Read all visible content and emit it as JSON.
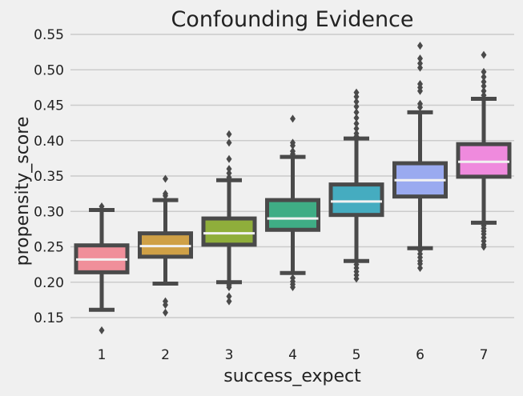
{
  "chart_data": {
    "type": "box",
    "title": "Confounding Evidence",
    "xlabel": "success_expect",
    "ylabel": "propensity_score",
    "categories": [
      "1",
      "2",
      "3",
      "4",
      "5",
      "6",
      "7"
    ],
    "ylim": [
      0.12,
      0.55
    ],
    "yticks": [
      0.15,
      0.2,
      0.25,
      0.3,
      0.35,
      0.4,
      0.45,
      0.5,
      0.55
    ],
    "ytick_labels": [
      "0.15",
      "0.20",
      "0.25",
      "0.30",
      "0.35",
      "0.40",
      "0.45",
      "0.50",
      "0.55"
    ],
    "grid": "horizontal",
    "colors": [
      "#f08f9a",
      "#cfa046",
      "#8fae3b",
      "#3fad85",
      "#45acc0",
      "#9aaaf0",
      "#ef8add"
    ],
    "edge_color": "#4a4a4a",
    "background": "#f0f0f0",
    "boxes": [
      {
        "category": "1",
        "whislo": 0.161,
        "q1": 0.214,
        "med": 0.232,
        "q3": 0.252,
        "whishi": 0.302,
        "fliers": [
          0.307,
          0.132
        ]
      },
      {
        "category": "2",
        "whislo": 0.198,
        "q1": 0.236,
        "med": 0.251,
        "q3": 0.269,
        "whishi": 0.316,
        "fliers": [
          0.346,
          0.325,
          0.322,
          0.173,
          0.168,
          0.157
        ]
      },
      {
        "category": "3",
        "whislo": 0.2,
        "q1": 0.253,
        "med": 0.269,
        "q3": 0.29,
        "whishi": 0.344,
        "fliers": [
          0.409,
          0.397,
          0.374,
          0.36,
          0.354,
          0.348,
          0.196,
          0.193,
          0.18,
          0.173
        ]
      },
      {
        "category": "4",
        "whislo": 0.213,
        "q1": 0.274,
        "med": 0.29,
        "q3": 0.316,
        "whishi": 0.377,
        "fliers": [
          0.431,
          0.397,
          0.393,
          0.385,
          0.381,
          0.206,
          0.201,
          0.197,
          0.193
        ]
      },
      {
        "category": "5",
        "whislo": 0.23,
        "q1": 0.295,
        "med": 0.314,
        "q3": 0.338,
        "whishi": 0.403,
        "fliers": [
          0.468,
          0.462,
          0.455,
          0.448,
          0.44,
          0.432,
          0.424,
          0.417,
          0.41,
          0.406,
          0.225,
          0.22,
          0.215,
          0.21,
          0.205
        ]
      },
      {
        "category": "6",
        "whislo": 0.248,
        "q1": 0.321,
        "med": 0.344,
        "q3": 0.368,
        "whishi": 0.44,
        "fliers": [
          0.534,
          0.516,
          0.509,
          0.503,
          0.48,
          0.475,
          0.47,
          0.452,
          0.447,
          0.245,
          0.24,
          0.235,
          0.23,
          0.226,
          0.22
        ]
      },
      {
        "category": "7",
        "whislo": 0.284,
        "q1": 0.349,
        "med": 0.37,
        "q3": 0.395,
        "whishi": 0.459,
        "fliers": [
          0.521,
          0.497,
          0.49,
          0.483,
          0.477,
          0.47,
          0.464,
          0.28,
          0.276,
          0.272,
          0.268,
          0.263,
          0.258,
          0.253,
          0.25
        ]
      }
    ]
  }
}
